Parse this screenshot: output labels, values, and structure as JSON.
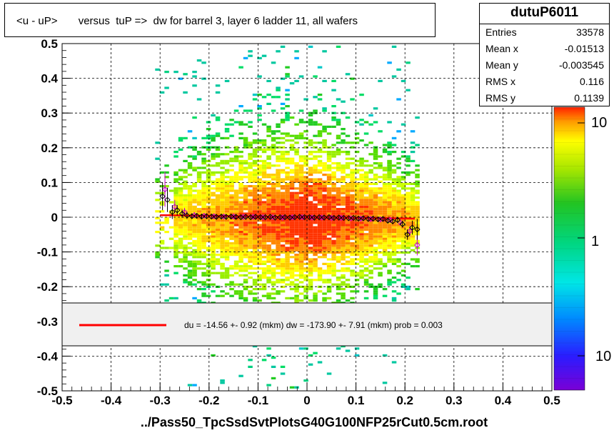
{
  "title": "<u - uP>       versus  tuP =>  dw for barrel 3, layer 6 ladder 11, all wafers",
  "stats": {
    "name": "dutuP6011",
    "rows": [
      {
        "label": "Entries",
        "value": "33578"
      },
      {
        "label": "Mean x",
        "value": "-0.01513"
      },
      {
        "label": "Mean y",
        "value": "-0.003545"
      },
      {
        "label": "RMS x",
        "value": "0.116"
      },
      {
        "label": "RMS y",
        "value": "0.1139"
      }
    ]
  },
  "legend": {
    "text": "du =  -14.56 +-  0.92 (mkm) dw = -173.90 +-  7.91 (mkm) prob = 0.003",
    "line_color": "#ff0000"
  },
  "xlabel": "../Pass50_TpcSsdSvtPlotsG40G100NFP25rCut0.5cm.root",
  "palette_labels": [
    "10",
    "1",
    "10"
  ],
  "colors": {
    "fit": "#ff0000",
    "profile_black": "#000000",
    "profile_magenta": "#cc00cc",
    "profile_green": "#008800"
  },
  "chart_data": {
    "type": "heatmap",
    "xlim": [
      -0.5,
      0.5
    ],
    "ylim": [
      -0.5,
      0.5
    ],
    "xticks": [
      "-0.5",
      "-0.4",
      "-0.3",
      "-0.2",
      "-0.1",
      "0",
      "0.1",
      "0.2",
      "0.3",
      "0.4",
      "0.5"
    ],
    "yticks": [
      "-0.5",
      "-0.4",
      "-0.3",
      "-0.2",
      "-0.1",
      "0",
      "0.1",
      "0.2",
      "0.3",
      "0.4",
      "0.5"
    ],
    "grid": true,
    "fit_line": {
      "x": [
        -0.3,
        0.22
      ],
      "y": [
        0.006,
        -0.004
      ]
    },
    "profile": {
      "x": [
        -0.295,
        -0.285,
        -0.275,
        -0.265,
        -0.255,
        -0.245,
        -0.235,
        -0.225,
        -0.215,
        -0.205,
        -0.195,
        -0.185,
        -0.175,
        -0.165,
        -0.155,
        -0.145,
        -0.135,
        -0.125,
        -0.115,
        -0.105,
        -0.095,
        -0.085,
        -0.075,
        -0.065,
        -0.055,
        -0.045,
        -0.035,
        -0.025,
        -0.015,
        -0.005,
        0.005,
        0.015,
        0.025,
        0.035,
        0.045,
        0.055,
        0.065,
        0.075,
        0.085,
        0.095,
        0.105,
        0.115,
        0.125,
        0.135,
        0.145,
        0.155,
        0.165,
        0.175,
        0.185,
        0.195,
        0.205,
        0.215,
        0.225
      ],
      "y": [
        0.06,
        0.05,
        0.015,
        0.02,
        0.01,
        0.005,
        0.003,
        0.004,
        0.002,
        0.003,
        0.002,
        0.001,
        0.002,
        0.001,
        0.002,
        0.001,
        0.0,
        0.001,
        0.0,
        0.001,
        0.0,
        0.0,
        0.001,
        -0.001,
        0.0,
        0.0,
        -0.001,
        0.0,
        0.001,
        0.0,
        0.0,
        -0.001,
        0.0,
        -0.001,
        0.0,
        -0.002,
        -0.001,
        -0.002,
        -0.003,
        -0.002,
        -0.004,
        -0.003,
        -0.005,
        -0.004,
        -0.006,
        -0.005,
        -0.01,
        -0.012,
        -0.008,
        -0.02,
        -0.05,
        -0.03,
        -0.035
      ],
      "err": [
        0.04,
        0.035,
        0.02,
        0.015,
        0.012,
        0.01,
        0.008,
        0.007,
        0.006,
        0.006,
        0.005,
        0.005,
        0.005,
        0.005,
        0.005,
        0.005,
        0.004,
        0.004,
        0.004,
        0.004,
        0.004,
        0.004,
        0.004,
        0.004,
        0.004,
        0.004,
        0.004,
        0.004,
        0.004,
        0.004,
        0.004,
        0.004,
        0.004,
        0.004,
        0.004,
        0.004,
        0.004,
        0.004,
        0.004,
        0.004,
        0.005,
        0.005,
        0.005,
        0.005,
        0.005,
        0.006,
        0.006,
        0.007,
        0.008,
        0.01,
        0.015,
        0.02,
        0.03
      ]
    },
    "profile2": {
      "x": [
        -0.29,
        -0.27,
        -0.25,
        -0.23,
        -0.21,
        -0.19,
        -0.17,
        -0.15,
        -0.13,
        -0.11,
        -0.09,
        -0.07,
        -0.05,
        -0.03,
        -0.01,
        0.01,
        0.03,
        0.05,
        0.07,
        0.09,
        0.11,
        0.13,
        0.15,
        0.17,
        0.19,
        0.21,
        0.225
      ],
      "y": [
        0.08,
        0.03,
        0.015,
        0.006,
        0.004,
        0.003,
        0.002,
        0.002,
        0.001,
        0.001,
        0.0,
        0.0,
        -0.001,
        0.0,
        0.0,
        -0.001,
        -0.001,
        -0.002,
        -0.002,
        -0.003,
        -0.004,
        -0.005,
        -0.006,
        -0.008,
        -0.015,
        -0.04,
        -0.08
      ],
      "err": [
        0.05,
        0.02,
        0.012,
        0.008,
        0.006,
        0.005,
        0.005,
        0.005,
        0.004,
        0.004,
        0.004,
        0.004,
        0.004,
        0.004,
        0.004,
        0.004,
        0.004,
        0.004,
        0.004,
        0.004,
        0.005,
        0.005,
        0.005,
        0.006,
        0.008,
        0.015,
        0.03
      ]
    }
  }
}
